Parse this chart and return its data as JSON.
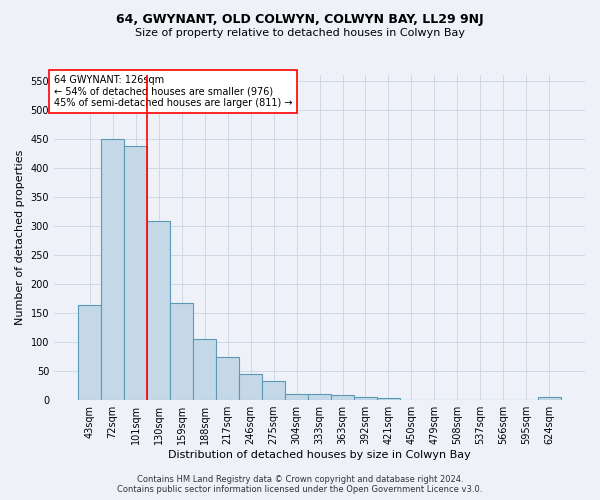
{
  "title": "64, GWYNANT, OLD COLWYN, COLWYN BAY, LL29 9NJ",
  "subtitle": "Size of property relative to detached houses in Colwyn Bay",
  "xlabel": "Distribution of detached houses by size in Colwyn Bay",
  "ylabel": "Number of detached properties",
  "footer_line1": "Contains HM Land Registry data © Crown copyright and database right 2024.",
  "footer_line2": "Contains public sector information licensed under the Open Government Licence v3.0.",
  "categories": [
    "43sqm",
    "72sqm",
    "101sqm",
    "130sqm",
    "159sqm",
    "188sqm",
    "217sqm",
    "246sqm",
    "275sqm",
    "304sqm",
    "333sqm",
    "363sqm",
    "392sqm",
    "421sqm",
    "450sqm",
    "479sqm",
    "508sqm",
    "537sqm",
    "566sqm",
    "595sqm",
    "624sqm"
  ],
  "values": [
    163,
    450,
    438,
    308,
    168,
    106,
    75,
    45,
    33,
    10,
    10,
    8,
    5,
    3,
    1,
    1,
    1,
    1,
    1,
    1,
    5
  ],
  "bar_color": "#c5d8e8",
  "bar_edge_color": "#5b9ab5",
  "bar_linewidth": 0.8,
  "grid_color": "#d0d8e8",
  "bg_color": "#eef2f8",
  "vline_x": 2.5,
  "vline_color": "red",
  "annotation_text": "64 GWYNANT: 126sqm\n← 54% of detached houses are smaller (976)\n45% of semi-detached houses are larger (811) →",
  "ylim": [
    0,
    560
  ],
  "yticks": [
    0,
    50,
    100,
    150,
    200,
    250,
    300,
    350,
    400,
    450,
    500,
    550
  ],
  "title_fontsize": 9,
  "subtitle_fontsize": 8,
  "xlabel_fontsize": 8,
  "ylabel_fontsize": 8,
  "tick_fontsize": 7,
  "annotation_fontsize": 7,
  "footer_fontsize": 6
}
